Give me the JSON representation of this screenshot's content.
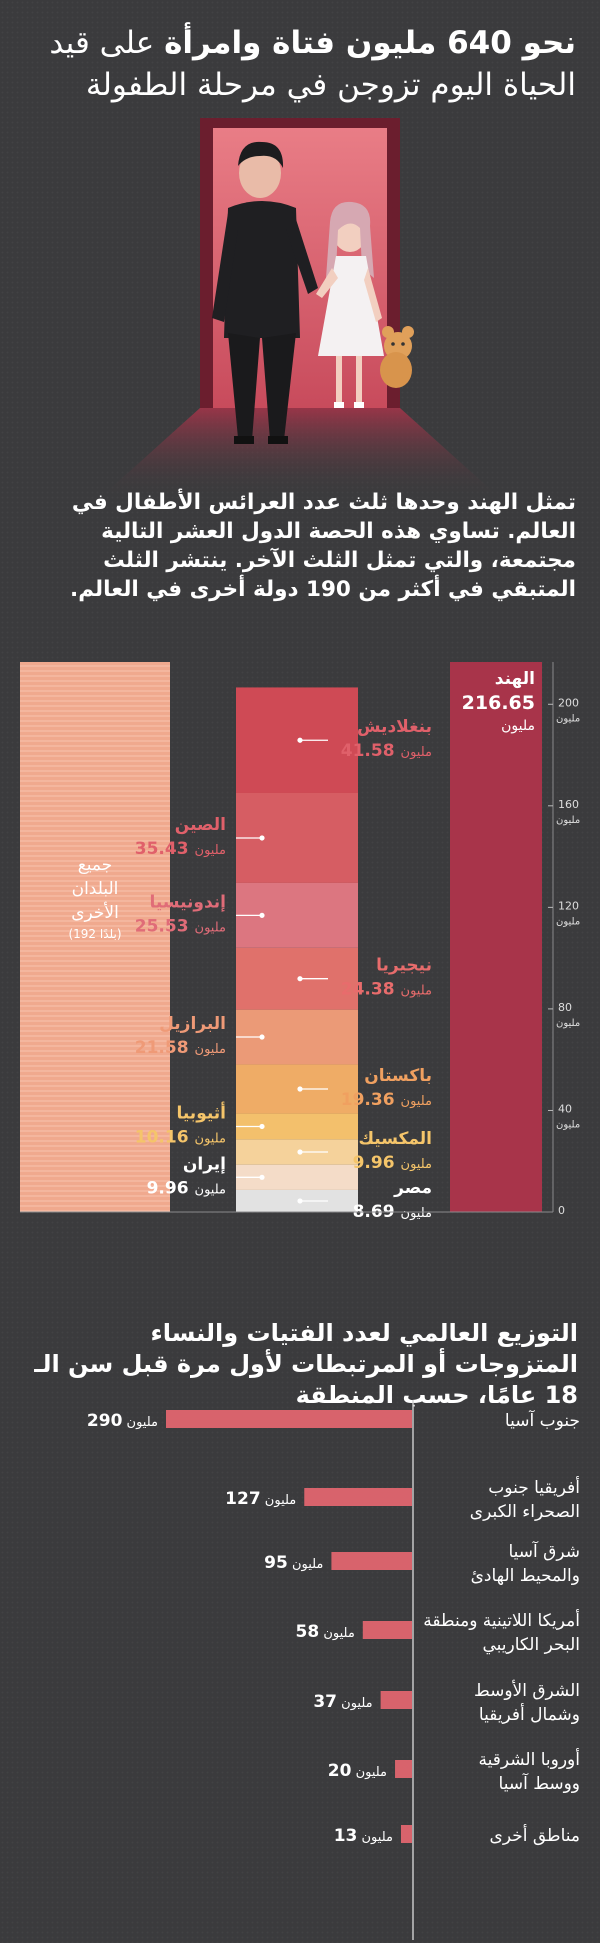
{
  "title": {
    "line1_highlight": "نحو 640 مليون فتاة وامرأة",
    "line1_rest": " على قيد",
    "line2": "الحياة اليوم تزوجن في مرحلة الطفولة"
  },
  "intro": "تمثل الهند وحدها ثلث عدد العرائس الأطفال في العالم. تساوي هذه الحصة الدول العشر التالية مجتمعة، والتي تمثل الثلث الآخر. ينتشر الثلث المتبقي في أكثر من 190 دولة أخرى في العالم.",
  "colors": {
    "background": "#3b3b3d",
    "india": "#a8344a",
    "others": "#f0a98e",
    "bar2": "#d8636c",
    "label_red": "#e8606a",
    "label_orange": "#f0a070",
    "label_yellow": "#f5c56a"
  },
  "chart_data": [
    {
      "type": "stacked-bar",
      "unit": "مليون",
      "ylim": [
        0,
        216.65
      ],
      "yticks": [
        {
          "value": 0,
          "label": "0"
        },
        {
          "value": 40,
          "label": "40"
        },
        {
          "value": 80,
          "label": "80"
        },
        {
          "value": 120,
          "label": "120"
        },
        {
          "value": 160,
          "label": "160"
        },
        {
          "value": 200,
          "label": "200"
        }
      ],
      "tick_unit": "مليون",
      "india": {
        "name": "الهند",
        "value": 216.65,
        "value_label": "216.65",
        "unit": "مليون"
      },
      "others": {
        "name_lines": [
          "جميع",
          "البلدان",
          "الأخرى"
        ],
        "sub": "(192 بلدًا)"
      },
      "countries": [
        {
          "name": "مصر",
          "value": 8.69,
          "value_label": "8.69",
          "color": "#e2e2e2",
          "side": "right",
          "label_color": "#ffffff"
        },
        {
          "name": "إيران",
          "value": 9.96,
          "value_label": "9.96",
          "color": "#f4dcc8",
          "side": "left",
          "label_color": "#ffffff"
        },
        {
          "name": "المكسيك",
          "value": 9.96,
          "value_label": "9.96",
          "color": "#f5d29b",
          "side": "right",
          "label_color": "#f5c56a"
        },
        {
          "name": "أثيوبيا",
          "value": 10.16,
          "value_label": "10.16",
          "color": "#f3c06c",
          "side": "left",
          "label_color": "#f5c56a"
        },
        {
          "name": "باكستان",
          "value": 19.36,
          "value_label": "19.36",
          "color": "#efac66",
          "side": "right",
          "label_color": "#f0a060"
        },
        {
          "name": "البرازيل",
          "value": 21.58,
          "value_label": "21.58",
          "color": "#eb9a77",
          "side": "left",
          "label_color": "#ef9a77"
        },
        {
          "name": "نيجيريا",
          "value": 24.38,
          "value_label": "24.38",
          "color": "#e0716b",
          "side": "right",
          "label_color": "#e86c6c"
        },
        {
          "name": "إندونيسيا",
          "value": 25.53,
          "value_label": "25.53",
          "color": "#dc7680",
          "side": "left",
          "label_color": "#e06c78"
        },
        {
          "name": "الصين",
          "value": 35.43,
          "value_label": "35.43",
          "color": "#d65d63",
          "side": "left",
          "label_color": "#e0606a"
        },
        {
          "name": "بنغلاديش",
          "value": 41.58,
          "value_label": "41.58",
          "color": "#cf4a55",
          "side": "right",
          "label_color": "#e0606a"
        }
      ]
    },
    {
      "type": "bar",
      "orientation": "horizontal",
      "title": "التوزيع العالمي لعدد الفتيات والنساء المتزوجات أو المرتبطات لأول مرة قبل سن الـ 18 عامًا، حسب المنطقة",
      "unit": "مليون",
      "xlim": [
        0,
        290
      ],
      "categories": [
        [
          "جنوب آسيا"
        ],
        [
          "أفريقيا جنوب",
          "الصحراء الكبرى"
        ],
        [
          "شرق آسيا",
          "والمحيط الهادئ"
        ],
        [
          "أمريكا اللاتينية ومنطقة",
          "البحر الكاريبي"
        ],
        [
          "الشرق الأوسط",
          "وشمال أفريقيا"
        ],
        [
          "أوروبا الشرقية",
          "ووسط آسيا"
        ],
        [
          "مناطق أخرى"
        ]
      ],
      "values": [
        290,
        127,
        95,
        58,
        37,
        20,
        13
      ],
      "value_labels": [
        "290",
        "127",
        "95",
        "58",
        "37",
        "20",
        "13"
      ]
    }
  ]
}
